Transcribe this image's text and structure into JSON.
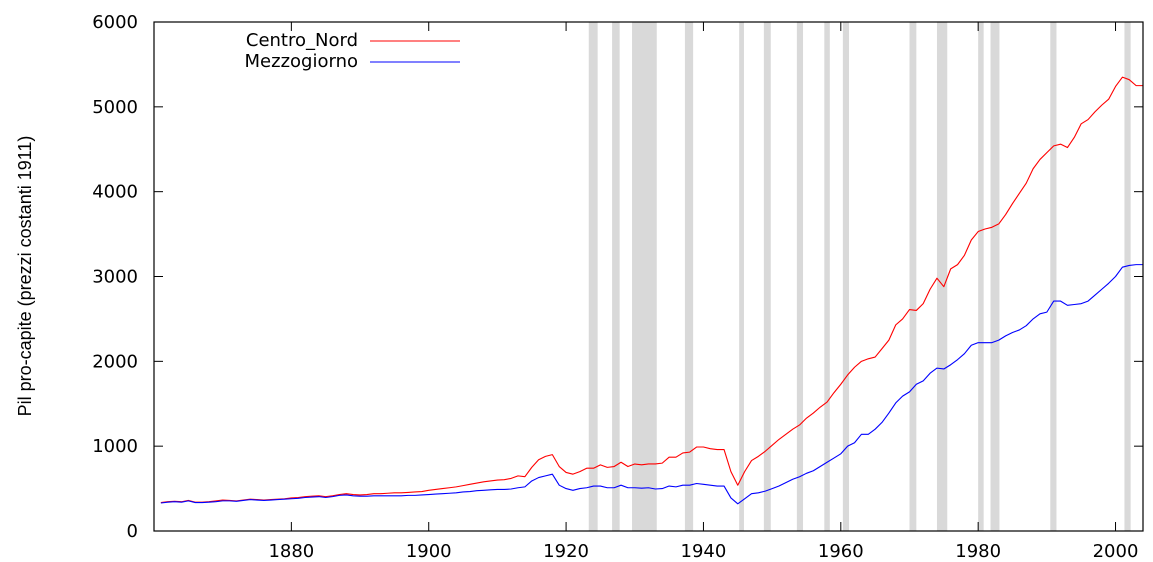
{
  "chart_data": {
    "type": "line",
    "ylabel": "Pil pro-capite (prezzi costanti 1911)",
    "xlim": [
      1860,
      2004
    ],
    "ylim": [
      0,
      6000
    ],
    "xticks": [
      1880,
      1900,
      1920,
      1940,
      1960,
      1980,
      2000
    ],
    "yticks": [
      0,
      1000,
      2000,
      3000,
      4000,
      5000,
      6000
    ],
    "legend": "top-left",
    "shade_color": "#d9d9d9",
    "shaded": [
      [
        1923.3,
        1924.6
      ],
      [
        1926.7,
        1927.8
      ],
      [
        1929.6,
        1933.2
      ],
      [
        1937.3,
        1938.5
      ],
      [
        1945.2,
        1945.9
      ],
      [
        1948.8,
        1949.8
      ],
      [
        1953.6,
        1954.5
      ],
      [
        1957.6,
        1958.4
      ],
      [
        1960.3,
        1961.2
      ],
      [
        1970.0,
        1971.0
      ],
      [
        1974.0,
        1975.5
      ],
      [
        1980.0,
        1980.8
      ],
      [
        1981.8,
        1983.1
      ],
      [
        1990.5,
        1991.4
      ],
      [
        2001.3,
        2002.2
      ]
    ],
    "x": [
      1861,
      1862,
      1863,
      1864,
      1865,
      1866,
      1867,
      1868,
      1869,
      1870,
      1871,
      1872,
      1873,
      1874,
      1875,
      1876,
      1877,
      1878,
      1879,
      1880,
      1881,
      1882,
      1883,
      1884,
      1885,
      1886,
      1887,
      1888,
      1889,
      1890,
      1891,
      1892,
      1893,
      1894,
      1895,
      1896,
      1897,
      1898,
      1899,
      1900,
      1901,
      1902,
      1903,
      1904,
      1905,
      1906,
      1907,
      1908,
      1909,
      1910,
      1911,
      1912,
      1913,
      1914,
      1915,
      1916,
      1917,
      1918,
      1919,
      1920,
      1921,
      1922,
      1923,
      1924,
      1925,
      1926,
      1927,
      1928,
      1929,
      1930,
      1931,
      1932,
      1933,
      1934,
      1935,
      1936,
      1937,
      1938,
      1939,
      1940,
      1941,
      1942,
      1943,
      1944,
      1945,
      1946,
      1947,
      1948,
      1949,
      1950,
      1951,
      1952,
      1953,
      1954,
      1955,
      1956,
      1957,
      1958,
      1959,
      1960,
      1961,
      1962,
      1963,
      1964,
      1965,
      1966,
      1967,
      1968,
      1969,
      1970,
      1971,
      1972,
      1973,
      1974,
      1975,
      1976,
      1977,
      1978,
      1979,
      1980,
      1981,
      1982,
      1983,
      1984,
      1985,
      1986,
      1987,
      1988,
      1989,
      1990,
      1991,
      1992,
      1993,
      1994,
      1995,
      1996,
      1997,
      1998,
      1999,
      2000,
      2001,
      2002,
      2003,
      2004
    ],
    "series": [
      {
        "name": "Centro_Nord",
        "color": "#ff0000",
        "values": [
          335,
          345,
          350,
          345,
          360,
          340,
          340,
          345,
          355,
          365,
          360,
          355,
          365,
          375,
          370,
          365,
          370,
          375,
          380,
          390,
          395,
          405,
          410,
          415,
          405,
          415,
          430,
          440,
          430,
          425,
          430,
          440,
          440,
          445,
          450,
          450,
          455,
          460,
          465,
          480,
          490,
          500,
          510,
          520,
          535,
          550,
          565,
          580,
          590,
          600,
          605,
          620,
          650,
          640,
          750,
          840,
          880,
          900,
          760,
          690,
          670,
          700,
          740,
          740,
          780,
          750,
          760,
          810,
          760,
          790,
          780,
          790,
          790,
          800,
          870,
          870,
          920,
          930,
          990,
          990,
          970,
          960,
          960,
          700,
          540,
          700,
          830,
          880,
          940,
          1010,
          1080,
          1140,
          1200,
          1250,
          1330,
          1390,
          1460,
          1520,
          1630,
          1730,
          1840,
          1930,
          2000,
          2030,
          2050,
          2150,
          2250,
          2430,
          2500,
          2610,
          2600,
          2680,
          2850,
          2980,
          2880,
          3090,
          3140,
          3250,
          3430,
          3530,
          3560,
          3580,
          3620,
          3730,
          3860,
          3980,
          4100,
          4270,
          4380,
          4460,
          4540,
          4560,
          4520,
          4640,
          4800,
          4850,
          4940,
          5020,
          5090,
          5240,
          5350,
          5320,
          5250,
          5250
        ]
      },
      {
        "name": "Mezzogiorno",
        "color": "#0000ff",
        "values": [
          330,
          340,
          345,
          340,
          355,
          335,
          335,
          340,
          345,
          355,
          355,
          350,
          360,
          370,
          365,
          360,
          365,
          370,
          375,
          380,
          385,
          395,
          400,
          405,
          395,
          405,
          420,
          425,
          415,
          410,
          410,
          415,
          415,
          415,
          415,
          415,
          420,
          420,
          425,
          430,
          435,
          440,
          445,
          450,
          460,
          465,
          475,
          480,
          485,
          490,
          490,
          495,
          510,
          520,
          590,
          630,
          650,
          670,
          540,
          500,
          480,
          500,
          510,
          530,
          530,
          510,
          510,
          540,
          510,
          510,
          505,
          510,
          495,
          500,
          530,
          520,
          540,
          540,
          560,
          550,
          540,
          530,
          530,
          390,
          320,
          380,
          440,
          450,
          470,
          500,
          530,
          570,
          610,
          640,
          680,
          710,
          760,
          810,
          860,
          910,
          1000,
          1040,
          1140,
          1140,
          1200,
          1280,
          1390,
          1510,
          1590,
          1640,
          1730,
          1770,
          1860,
          1920,
          1910,
          1960,
          2020,
          2090,
          2190,
          2220,
          2220,
          2220,
          2250,
          2300,
          2340,
          2370,
          2420,
          2500,
          2560,
          2580,
          2710,
          2710,
          2660,
          2670,
          2680,
          2710,
          2780,
          2850,
          2920,
          3000,
          3110,
          3130,
          3140,
          3140
        ]
      }
    ]
  }
}
